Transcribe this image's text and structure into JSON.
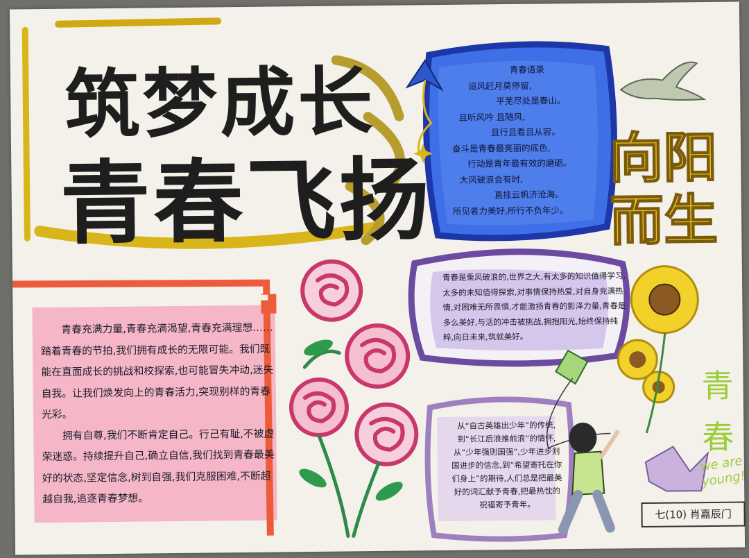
{
  "title": {
    "line1": "筑梦成长",
    "line2": "青春飞扬"
  },
  "slogan": {
    "line1": "向阳",
    "line2": "而生"
  },
  "side": {
    "qing": "青",
    "chun": "春",
    "young": "we are young!"
  },
  "blue_box": {
    "heading": "青春语录",
    "lines": [
      "追风赶月莫停留,",
      "平芜尽处是春山。",
      "且听风吟 且随风,",
      "且行且看且从容。",
      "奋斗是青春最亮丽的底色,",
      "行动是青年最有效的磨砺。",
      "大风破浪会有时,",
      "直挂云帆济沧海。",
      "所见者力美好,所行不负年少。"
    ]
  },
  "purple_box": {
    "text": "青春是乘风破浪的,世界之大,有太多的知识值得学习,太多的未知值得探索,对事情保持热爱,对自身充满热情,对困难无所畏惧,才能激扬青春的影泽力量,青春是多么美好,与活的冲击被挑战,拥抱阳光,始终保持纯粹,向日未来,筑就美好。"
  },
  "left_block": {
    "para1": "青春充满力量,青春充满渴望,青春充满理想……踏着青春的节拍,我们拥有成长的无限可能。我们既能在直面成长的挑战和校探索,也可能冒失冲动,迷失自我。让我们焕发向上的青春活力,突现别样的青春光彩。",
    "para2": "拥有自尊,我们不断肯定自己。行己有耻,不被虚荣迷惑。持续提升自己,确立自信,我们找到青春最美好的状态,坚定信念,树到自强,我们克服困难,不断超越自我,追逐青春梦想。"
  },
  "small_box": {
    "text": "从“自古英雄出少年”的传统,到“长江后浪推前浪”的情怀,从“少年强则国强”,少年进步则国进步的信念,到“希望寄托在你们身上”的期待,人们总是把最美好的词汇献予青春,把最热忱的祝福寄予青年。"
  },
  "class_label": "七(10) 肖嘉辰门",
  "colors": {
    "paper": "#f4f1ea",
    "gold": "#d9b51c",
    "blue": "#2b4fc2",
    "purple": "#6c4aa0",
    "pink": "#f5a3bc",
    "red_orange": "#ee5b3a"
  },
  "icons": [
    "paper-plane-icon",
    "dove-icon",
    "rose-icon",
    "sunflower-icon",
    "paper-crane-icon",
    "kite-icon",
    "child-figure-icon"
  ]
}
